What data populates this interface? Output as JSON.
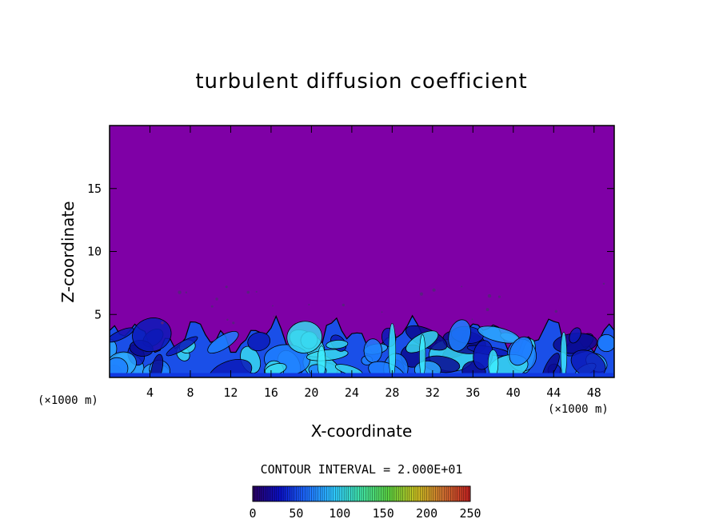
{
  "chart_data": {
    "type": "heatmap",
    "title": "turbulent diffusion coefficient",
    "xlabel": "X-coordinate",
    "ylabel": "Z-coordinate",
    "x_unit": "(×1000 m)",
    "z_unit": "(×1000 m)",
    "xlim": [
      0,
      50
    ],
    "ylim": [
      0,
      20
    ],
    "x_ticks": [
      4,
      8,
      12,
      16,
      20,
      24,
      28,
      32,
      36,
      40,
      44,
      48
    ],
    "y_ticks": [
      5,
      10,
      15
    ],
    "contour_interval_label": "CONTOUR INTERVAL = 2.000E+01",
    "contour_interval": 20,
    "colorbar": {
      "min": 0,
      "max": 250,
      "ticks": [
        0,
        50,
        100,
        150,
        200,
        250
      ],
      "colors": [
        "#2a0060",
        "#0a10c8",
        "#1e6fff",
        "#2ec8ff",
        "#40e0a0",
        "#5ad040",
        "#c8c020",
        "#d07030",
        "#c02020"
      ]
    },
    "background_value_color": "#7f00a6",
    "turbulent_layer_top_km": 4.5
  }
}
